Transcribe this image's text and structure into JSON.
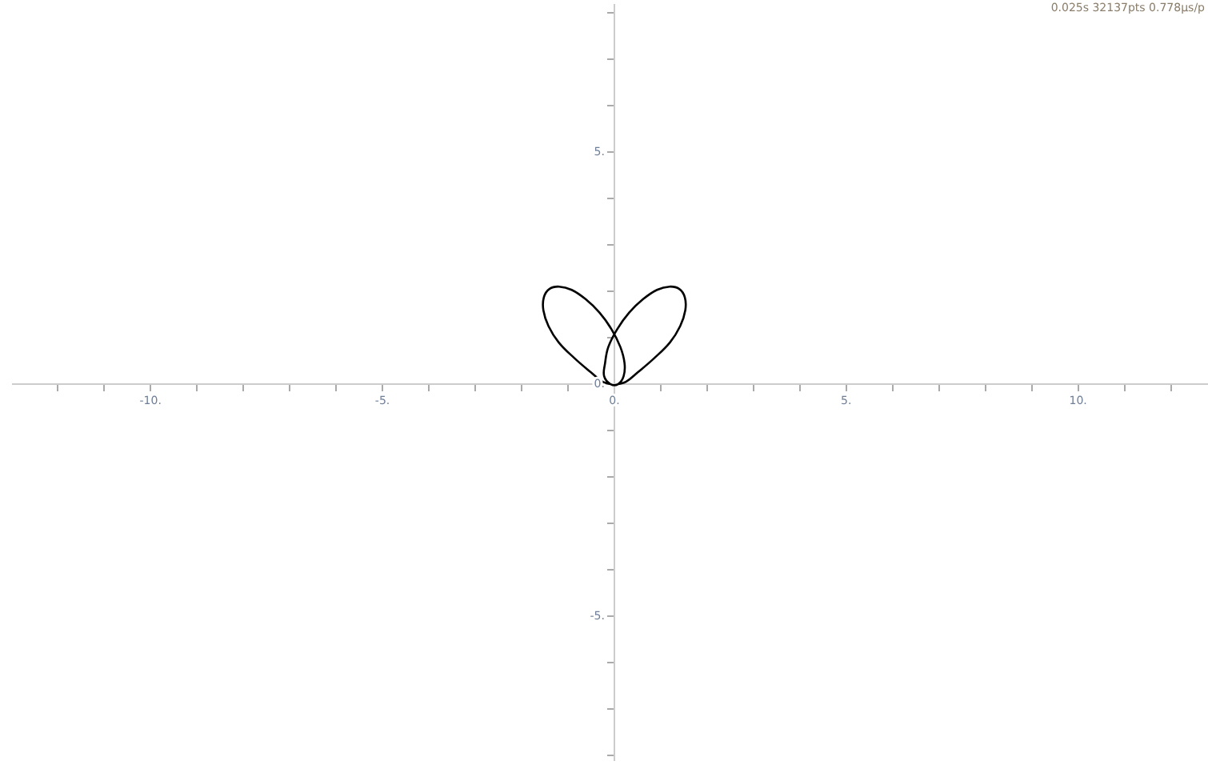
{
  "chart_data": {
    "type": "line",
    "color": "#000000",
    "x": [
      -0.08,
      -0.25,
      -0.5,
      -0.85,
      -1.2,
      -1.42,
      -1.53,
      -1.52,
      -1.4,
      -1.19,
      -0.92,
      -0.62,
      -0.32,
      -0.06,
      0.13,
      0.22,
      0.2,
      0.08,
      -0.08,
      -0.22,
      -0.2,
      -0.13,
      0.06,
      0.32,
      0.62,
      0.92,
      1.19,
      1.4,
      1.52,
      1.53,
      1.42,
      1.2,
      0.85,
      0.5,
      0.25,
      0.08
    ],
    "values": [
      0.0,
      0.05,
      0.25,
      0.55,
      0.9,
      1.25,
      1.59,
      1.87,
      2.05,
      2.1,
      2.03,
      1.83,
      1.54,
      1.18,
      0.8,
      0.45,
      0.17,
      0.0,
      0.0,
      0.17,
      0.45,
      0.8,
      1.18,
      1.54,
      1.83,
      2.03,
      2.1,
      2.05,
      1.87,
      1.59,
      1.25,
      0.9,
      0.55,
      0.25,
      0.05,
      0.0
    ],
    "xlim": [
      -12.97,
      12.8
    ],
    "ylim": [
      -8.1,
      8.17
    ],
    "xticks": [
      {
        "value": -12,
        "label": null
      },
      {
        "value": -11,
        "label": null
      },
      {
        "value": -10,
        "label": "-10."
      },
      {
        "value": -9,
        "label": null
      },
      {
        "value": -8,
        "label": null
      },
      {
        "value": -7,
        "label": null
      },
      {
        "value": -6,
        "label": null
      },
      {
        "value": -5,
        "label": "-5."
      },
      {
        "value": -4,
        "label": null
      },
      {
        "value": -3,
        "label": null
      },
      {
        "value": -2,
        "label": null
      },
      {
        "value": -1,
        "label": null
      },
      {
        "value": 0,
        "label": "0."
      },
      {
        "value": 1,
        "label": null
      },
      {
        "value": 2,
        "label": null
      },
      {
        "value": 3,
        "label": null
      },
      {
        "value": 4,
        "label": null
      },
      {
        "value": 5,
        "label": "5."
      },
      {
        "value": 6,
        "label": null
      },
      {
        "value": 7,
        "label": null
      },
      {
        "value": 8,
        "label": null
      },
      {
        "value": 9,
        "label": null
      },
      {
        "value": 10,
        "label": "10."
      },
      {
        "value": 11,
        "label": null
      },
      {
        "value": 12,
        "label": null
      }
    ],
    "yticks": [
      {
        "value": -8,
        "label": null
      },
      {
        "value": -7,
        "label": null
      },
      {
        "value": -6,
        "label": null
      },
      {
        "value": -5,
        "label": "-5."
      },
      {
        "value": -4,
        "label": null
      },
      {
        "value": -3,
        "label": null
      },
      {
        "value": -2,
        "label": null
      },
      {
        "value": -1,
        "label": null
      },
      {
        "value": 0,
        "label": "0."
      },
      {
        "value": 1,
        "label": null
      },
      {
        "value": 2,
        "label": null
      },
      {
        "value": 3,
        "label": null
      },
      {
        "value": 4,
        "label": null
      },
      {
        "value": 5,
        "label": "5."
      },
      {
        "value": 6,
        "label": null
      },
      {
        "value": 7,
        "label": null
      },
      {
        "value": 8,
        "label": null
      }
    ],
    "grid": false,
    "legend": false,
    "marker": "none",
    "line_style": "solid",
    "annotations": [
      "0.025s 32137pts 0.778µs/p"
    ]
  }
}
